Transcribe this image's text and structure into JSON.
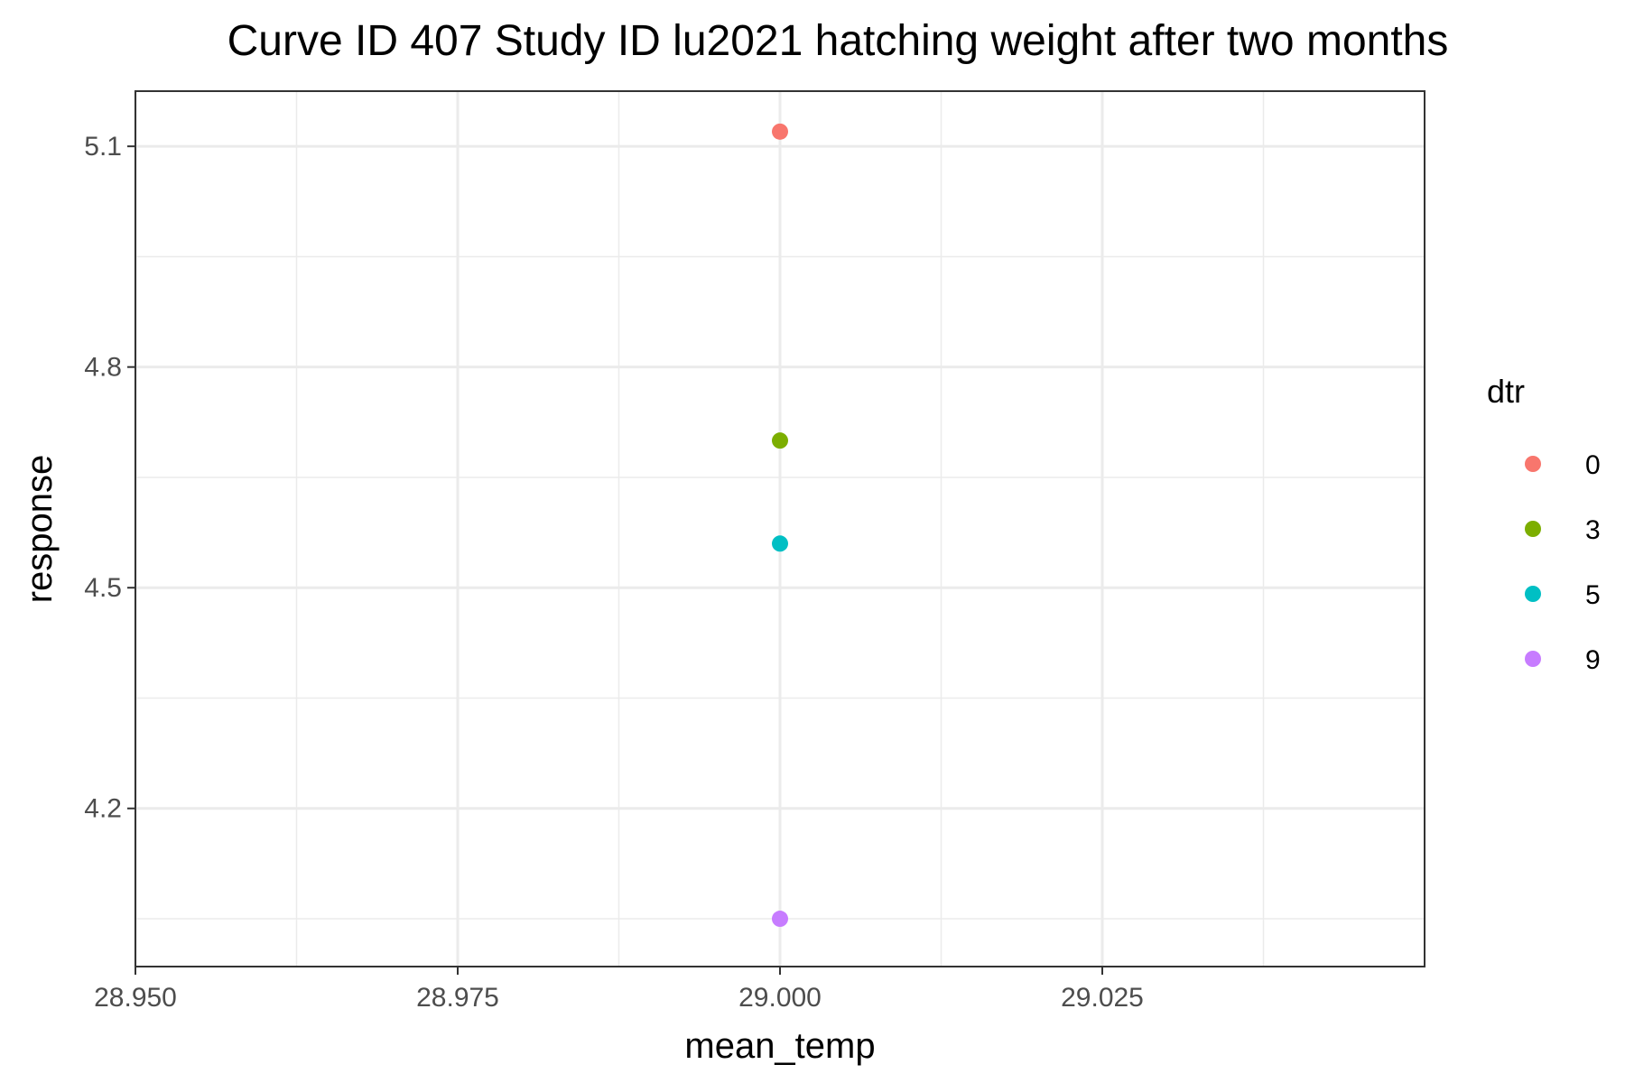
{
  "chart_data": {
    "type": "scatter",
    "title": "Curve ID 407 Study ID lu2021 hatching weight after two months",
    "xlabel": "mean_temp",
    "ylabel": "response",
    "xlim": [
      28.95,
      29.05
    ],
    "ylim": [
      3.985,
      5.175
    ],
    "x_ticks": [
      28.95,
      28.975,
      29.0,
      29.025
    ],
    "x_tick_labels": [
      "28.950",
      "28.975",
      "29.000",
      "29.025"
    ],
    "y_ticks": [
      4.2,
      4.5,
      4.8,
      5.1
    ],
    "y_tick_labels": [
      "4.2",
      "4.5",
      "4.8",
      "5.1"
    ],
    "grid": true,
    "legend": {
      "title": "dtr",
      "placement": "right"
    },
    "series": [
      {
        "name": "0",
        "color": "#F8766D",
        "x": [
          29.0
        ],
        "y": [
          5.12
        ]
      },
      {
        "name": "3",
        "color": "#7CAE00",
        "x": [
          29.0
        ],
        "y": [
          4.7
        ]
      },
      {
        "name": "5",
        "color": "#00BFC4",
        "x": [
          29.0
        ],
        "y": [
          4.56
        ]
      },
      {
        "name": "9",
        "color": "#C77CFF",
        "x": [
          29.0
        ],
        "y": [
          4.05
        ]
      }
    ]
  }
}
